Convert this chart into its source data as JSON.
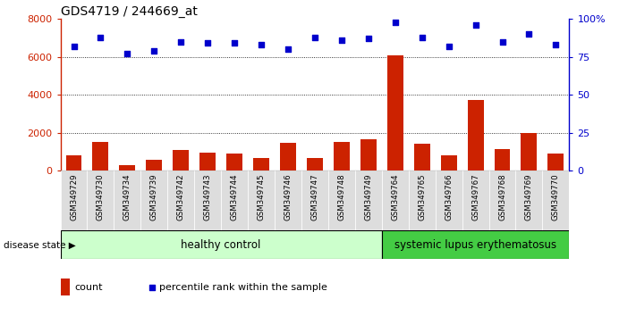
{
  "title": "GDS4719 / 244669_at",
  "samples": [
    "GSM349729",
    "GSM349730",
    "GSM349734",
    "GSM349739",
    "GSM349742",
    "GSM349743",
    "GSM349744",
    "GSM349745",
    "GSM349746",
    "GSM349747",
    "GSM349748",
    "GSM349749",
    "GSM349764",
    "GSM349765",
    "GSM349766",
    "GSM349767",
    "GSM349768",
    "GSM349769",
    "GSM349770"
  ],
  "counts": [
    800,
    1500,
    300,
    550,
    1100,
    950,
    900,
    650,
    1450,
    650,
    1500,
    1650,
    6100,
    1400,
    800,
    3750,
    1150,
    2000,
    900
  ],
  "percentile": [
    82,
    88,
    77,
    79,
    85,
    84,
    84,
    83,
    80,
    88,
    86,
    87,
    98,
    88,
    82,
    96,
    85,
    90,
    83
  ],
  "healthy_count": 12,
  "bar_color": "#cc2200",
  "dot_color": "#0000cc",
  "healthy_bg": "#ccffcc",
  "lupus_bg": "#44cc44",
  "xticklabel_bg": "#dddddd",
  "left_ylim": [
    0,
    8000
  ],
  "right_ylim": [
    0,
    100
  ],
  "left_yticks": [
    0,
    2000,
    4000,
    6000,
    8000
  ],
  "left_yticklabels": [
    "0",
    "2000",
    "4000",
    "6000",
    "8000"
  ],
  "right_yticks": [
    0,
    25,
    50,
    75,
    100
  ],
  "right_yticklabels": [
    "0",
    "25",
    "50",
    "75",
    "100%"
  ],
  "grid_values": [
    2000,
    4000,
    6000
  ],
  "disease_state_label": "disease state",
  "healthy_label": "healthy control",
  "lupus_label": "systemic lupus erythematosus",
  "legend_count": "count",
  "legend_percentile": "percentile rank within the sample",
  "bar_width": 0.6,
  "title_fontsize": 10,
  "axis_color_left": "#cc2200",
  "axis_color_right": "#0000cc"
}
